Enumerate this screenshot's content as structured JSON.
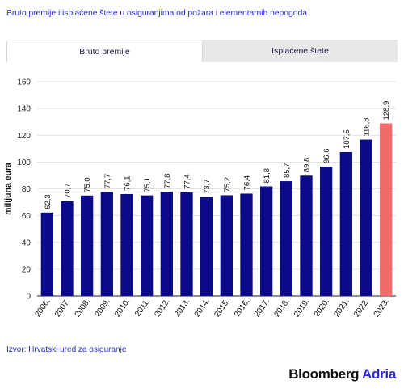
{
  "header": {
    "title": "Bruto premije i isplaćene štete u osiguranjima od požara i elementarnih nepogoda"
  },
  "tabs": [
    {
      "label": "Bruto premije",
      "active": true
    },
    {
      "label": "Isplaćene štete",
      "active": false
    }
  ],
  "footer": {
    "source": "Izvor: Hrvatski ured za osiguranje",
    "brand_main": "Bloomberg",
    "brand_accent": "Adria"
  },
  "colors": {
    "bar": "#0b0b8a",
    "highlight": "#f26b6b",
    "brand_accent": "#2d2bd6"
  },
  "chart_data": {
    "type": "bar",
    "title": "",
    "xlabel": "",
    "ylabel": "milijuna eura",
    "ylim": [
      0,
      160
    ],
    "yticks": [
      0,
      20,
      40,
      60,
      80,
      100,
      120,
      140,
      160
    ],
    "grid": true,
    "categories": [
      "2006.",
      "2007.",
      "2008.",
      "2009.",
      "2010.",
      "2011.",
      "2012.",
      "2013.",
      "2014.",
      "2015.",
      "2016.",
      "2017.",
      "2018.",
      "2019.",
      "2020.",
      "2021.",
      "2022.",
      "2023."
    ],
    "values": [
      62.3,
      70.7,
      75.0,
      77.7,
      76.1,
      75.1,
      77.8,
      77.4,
      73.7,
      75.2,
      76.4,
      81.8,
      85.7,
      89.8,
      96.6,
      107.5,
      116.8,
      128.9
    ],
    "value_labels": [
      "62,3",
      "70,7",
      "75,0",
      "77,7",
      "76,1",
      "75,1",
      "77,8",
      "77,4",
      "73,7",
      "75,2",
      "76,4",
      "81,8",
      "85,7",
      "89,8",
      "96,6",
      "107,5",
      "116,8",
      "128,9"
    ],
    "highlight_index": 17
  }
}
